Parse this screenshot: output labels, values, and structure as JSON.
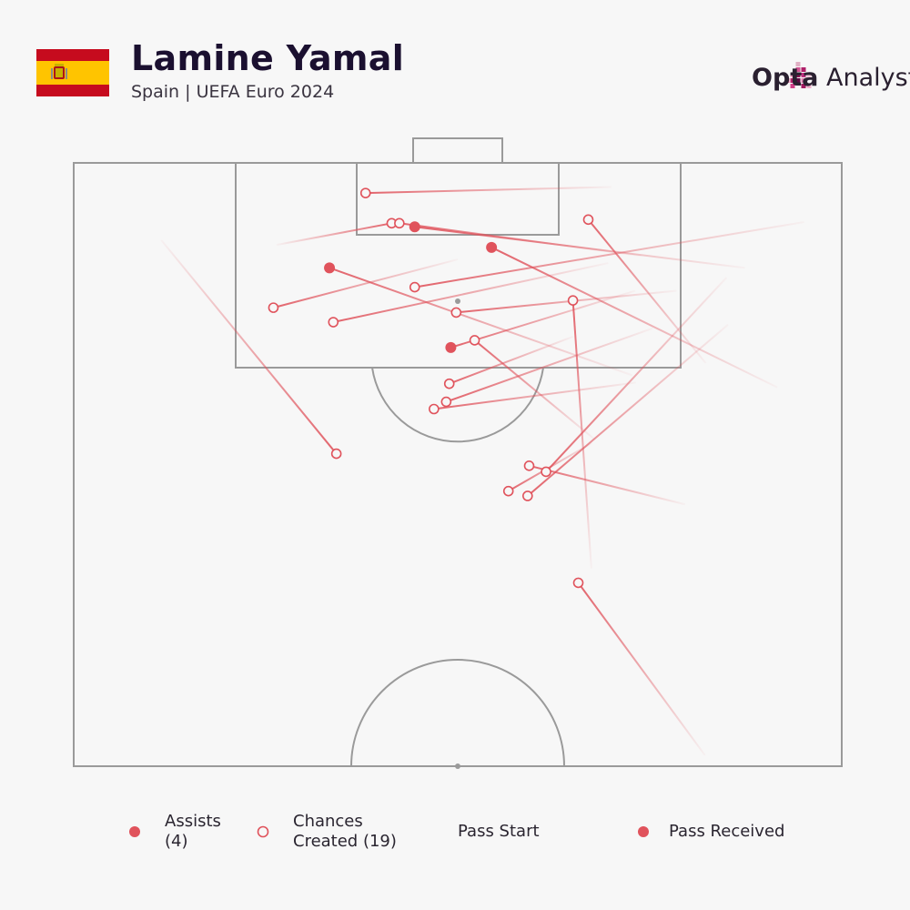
{
  "header": {
    "title": "Lamine Yamal",
    "subtitle": "Spain | UEFA Euro 2024",
    "brand_bold": "Opta",
    "brand_light": "Analyst"
  },
  "legend": {
    "assists_line1": "Assists",
    "assists_line2": "(4)",
    "chances_line1": "Chances",
    "chances_line2": "Created (19)",
    "pass_start": "Pass Start",
    "pass_received": "Pass Received"
  },
  "colors": {
    "assist": "#e0535c",
    "chance": "#e0535c",
    "pitch_lines": "#9a9a9a",
    "flag_red": "#c60b1e",
    "flag_yellow": "#ffc400"
  },
  "chart_data": {
    "type": "scatter",
    "title": "Lamine Yamal",
    "xlabel": "",
    "ylabel": "",
    "xlim": [
      0,
      100
    ],
    "ylim": [
      50,
      100
    ],
    "series": [
      {
        "name": "Assists (4)",
        "marker": "filled",
        "passes": [
          {
            "start": [
              87.4,
              91.3
            ],
            "end": [
              44.4,
              94.7
            ]
          },
          {
            "start": [
              91.6,
              81.4
            ],
            "end": [
              54.4,
              93.0
            ]
          },
          {
            "start": [
              72.7,
              82.4
            ],
            "end": [
              33.3,
              91.3
            ]
          },
          {
            "start": [
              73.1,
              89.4
            ],
            "end": [
              49.1,
              84.7
            ]
          }
        ]
      },
      {
        "name": "Chances Created (19)",
        "marker": "hollow",
        "passes": [
          {
            "start": [
              26.4,
              93.2
            ],
            "end": [
              41.4,
              95.0
            ]
          },
          {
            "start": [
              73.9,
              92.3
            ],
            "end": [
              42.4,
              95.0
            ]
          },
          {
            "start": [
              95.1,
              95.1
            ],
            "end": [
              44.4,
              89.7
            ]
          },
          {
            "start": [
              78.5,
              89.4
            ],
            "end": [
              49.8,
              87.6
            ]
          },
          {
            "start": [
              82.3,
              83.4
            ],
            "end": [
              67.0,
              95.3
            ]
          },
          {
            "start": [
              69.6,
              91.7
            ],
            "end": [
              33.8,
              86.8
            ]
          },
          {
            "start": [
              67.8,
              77.1
            ],
            "end": [
              52.2,
              85.3
            ]
          },
          {
            "start": [
              65.0,
              85.6
            ],
            "end": [
              48.9,
              81.7
            ]
          },
          {
            "start": [
              75.4,
              86.3
            ],
            "end": [
              48.5,
              80.2
            ]
          },
          {
            "start": [
              73.2,
              81.8
            ],
            "end": [
              46.9,
              79.6
            ]
          },
          {
            "start": [
              85.0,
              90.5
            ],
            "end": [
              61.5,
              74.4
            ]
          },
          {
            "start": [
              79.6,
              71.7
            ],
            "end": [
              59.3,
              74.9
            ]
          },
          {
            "start": [
              85.2,
              86.6
            ],
            "end": [
              59.1,
              72.4
            ]
          },
          {
            "start": [
              67.5,
              76.8
            ],
            "end": [
              56.6,
              72.8
            ]
          },
          {
            "start": [
              11.4,
              93.6
            ],
            "end": [
              34.2,
              75.9
            ]
          },
          {
            "start": [
              67.4,
              66.4
            ],
            "end": [
              65.0,
              88.6
            ]
          },
          {
            "start": [
              82.2,
              50.9
            ],
            "end": [
              65.7,
              65.2
            ]
          },
          {
            "start": [
              50.0,
              92.0
            ],
            "end": [
              26.0,
              88.0
            ]
          },
          {
            "start": [
              70.0,
              98.0
            ],
            "end": [
              38.0,
              97.5
            ]
          }
        ]
      }
    ]
  }
}
